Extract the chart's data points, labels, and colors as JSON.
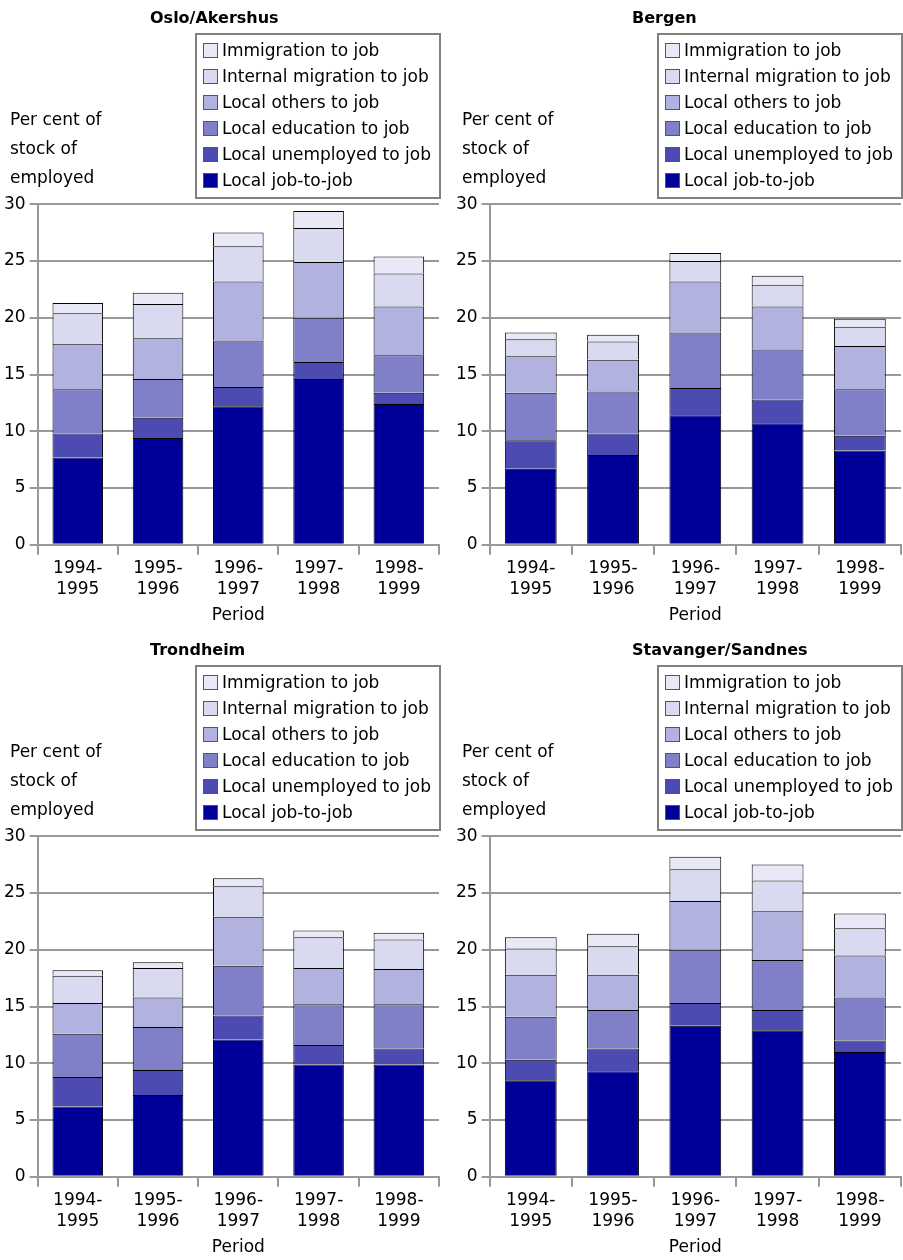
{
  "chart_data": [
    {
      "type": "bar",
      "title": "Oslo/Akershus",
      "ylabel": "Per cent of stock of employed",
      "xlabel": "Period",
      "categories": [
        "1994-1995",
        "1995-1996",
        "1996-1997",
        "1997-1998",
        "1998-1999"
      ],
      "stacked": true,
      "ylim": [
        0,
        30
      ],
      "yticks": [
        0,
        5,
        10,
        15,
        20,
        25,
        30
      ],
      "grid": "y",
      "legend": "top right",
      "series": [
        {
          "name": "Local job-to-job",
          "color": "#000099",
          "values": [
            7.7,
            9.4,
            12.2,
            14.6,
            12.4
          ]
        },
        {
          "name": "Local unemployed to job",
          "color": "#4b4bb2",
          "values": [
            2.1,
            1.8,
            1.7,
            1.5,
            1.0
          ]
        },
        {
          "name": "Local education to job",
          "color": "#8080c8",
          "values": [
            3.9,
            3.4,
            4.1,
            3.9,
            3.3
          ]
        },
        {
          "name": "Local others to job",
          "color": "#b2b2e0",
          "values": [
            4.0,
            3.6,
            5.2,
            4.9,
            4.3
          ]
        },
        {
          "name": "Internal migration to job",
          "color": "#d9d9ef",
          "values": [
            2.7,
            3.0,
            3.1,
            3.0,
            2.9
          ]
        },
        {
          "name": "Immigration to job",
          "color": "#e8e8f6",
          "values": [
            0.9,
            1.0,
            1.2,
            1.5,
            1.5
          ]
        }
      ]
    },
    {
      "type": "bar",
      "title": "Bergen",
      "ylabel": "Per cent of stock of employed",
      "xlabel": "Period",
      "categories": [
        "1994-1995",
        "1995-1996",
        "1996-1997",
        "1997-1998",
        "1998-1999"
      ],
      "stacked": true,
      "ylim": [
        0,
        30
      ],
      "yticks": [
        0,
        5,
        10,
        15,
        20,
        25,
        30
      ],
      "grid": "y",
      "legend": "top right",
      "series": [
        {
          "name": "Local job-to-job",
          "color": "#000099",
          "values": [
            6.7,
            7.9,
            11.4,
            10.7,
            8.3
          ]
        },
        {
          "name": "Local unemployed to job",
          "color": "#4b4bb2",
          "values": [
            2.5,
            1.9,
            2.4,
            2.1,
            1.3
          ]
        },
        {
          "name": "Local education to job",
          "color": "#8080c8",
          "values": [
            4.2,
            3.7,
            4.9,
            4.4,
            4.1
          ]
        },
        {
          "name": "Local others to job",
          "color": "#b2b2e0",
          "values": [
            3.2,
            2.8,
            4.5,
            3.8,
            3.8
          ]
        },
        {
          "name": "Internal migration to job",
          "color": "#d9d9ef",
          "values": [
            1.5,
            1.6,
            1.8,
            1.9,
            1.7
          ]
        },
        {
          "name": "Immigration to job",
          "color": "#e8e8f6",
          "values": [
            0.6,
            0.6,
            0.7,
            0.8,
            0.7
          ]
        }
      ]
    },
    {
      "type": "bar",
      "title": "Trondheim",
      "ylabel": "Per cent of stock of employed",
      "xlabel": "Period",
      "categories": [
        "1994-1995",
        "1995-1996",
        "1996-1997",
        "1997-1998",
        "1998-1999"
      ],
      "stacked": true,
      "ylim": [
        0,
        30
      ],
      "yticks": [
        0,
        5,
        10,
        15,
        20,
        25,
        30
      ],
      "grid": "y",
      "legend": "top right",
      "series": [
        {
          "name": "Local job-to-job",
          "color": "#000099",
          "values": [
            6.2,
            7.2,
            12.1,
            9.9,
            9.9
          ]
        },
        {
          "name": "Local unemployed to job",
          "color": "#4b4bb2",
          "values": [
            2.6,
            2.2,
            2.1,
            1.7,
            1.4
          ]
        },
        {
          "name": "Local education to job",
          "color": "#8080c8",
          "values": [
            3.8,
            3.8,
            4.4,
            3.6,
            3.9
          ]
        },
        {
          "name": "Local others to job",
          "color": "#b2b2e0",
          "values": [
            2.7,
            2.6,
            4.3,
            3.2,
            3.1
          ]
        },
        {
          "name": "Internal migration to job",
          "color": "#d9d9ef",
          "values": [
            2.4,
            2.6,
            2.7,
            2.7,
            2.6
          ]
        },
        {
          "name": "Immigration to job",
          "color": "#e8e8f6",
          "values": [
            0.5,
            0.5,
            0.7,
            0.6,
            0.6
          ]
        }
      ]
    },
    {
      "type": "bar",
      "title": "Stavanger/Sandnes",
      "ylabel": "Per cent of stock of employed",
      "xlabel": "Period",
      "categories": [
        "1994-1995",
        "1995-1996",
        "1996-1997",
        "1997-1998",
        "1998-1999"
      ],
      "stacked": true,
      "ylim": [
        0,
        30
      ],
      "yticks": [
        0,
        5,
        10,
        15,
        20,
        25,
        30
      ],
      "grid": "y",
      "legend": "top right",
      "series": [
        {
          "name": "Local job-to-job",
          "color": "#000099",
          "values": [
            8.5,
            9.3,
            13.3,
            12.9,
            11.0
          ]
        },
        {
          "name": "Local unemployed to job",
          "color": "#4b4bb2",
          "values": [
            1.8,
            2.0,
            2.0,
            1.8,
            1.0
          ]
        },
        {
          "name": "Local education to job",
          "color": "#8080c8",
          "values": [
            3.8,
            3.4,
            4.7,
            4.4,
            3.8
          ]
        },
        {
          "name": "Local others to job",
          "color": "#b2b2e0",
          "values": [
            3.7,
            3.1,
            4.3,
            4.3,
            3.7
          ]
        },
        {
          "name": "Internal migration to job",
          "color": "#d9d9ef",
          "values": [
            2.3,
            2.5,
            2.8,
            2.7,
            2.4
          ]
        },
        {
          "name": "Immigration to job",
          "color": "#e8e8f6",
          "values": [
            1.0,
            1.1,
            1.1,
            1.4,
            1.3
          ]
        }
      ]
    }
  ]
}
